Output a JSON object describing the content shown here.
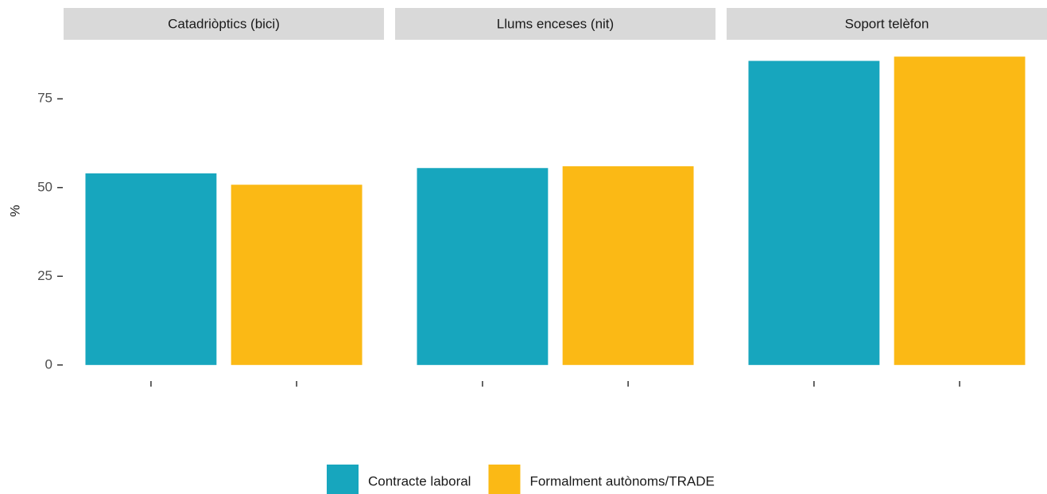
{
  "chart_data": {
    "type": "bar",
    "facets": [
      "Catadriòptics (bici)",
      "Llums enceses (nit)",
      "Soport telèfon"
    ],
    "series": [
      {
        "name": "Contracte laboral",
        "color": "#17a6be",
        "values": [
          54,
          55.5,
          85.7
        ]
      },
      {
        "name": "Formalment autònoms/TRADE",
        "color": "#fbb915",
        "values": [
          50.8,
          56,
          86.9
        ]
      }
    ],
    "ylabel": "%",
    "ylim": [
      -4.3,
      91.2
    ],
    "yticks": [
      0,
      25,
      50,
      75
    ],
    "legend": "bottom"
  }
}
